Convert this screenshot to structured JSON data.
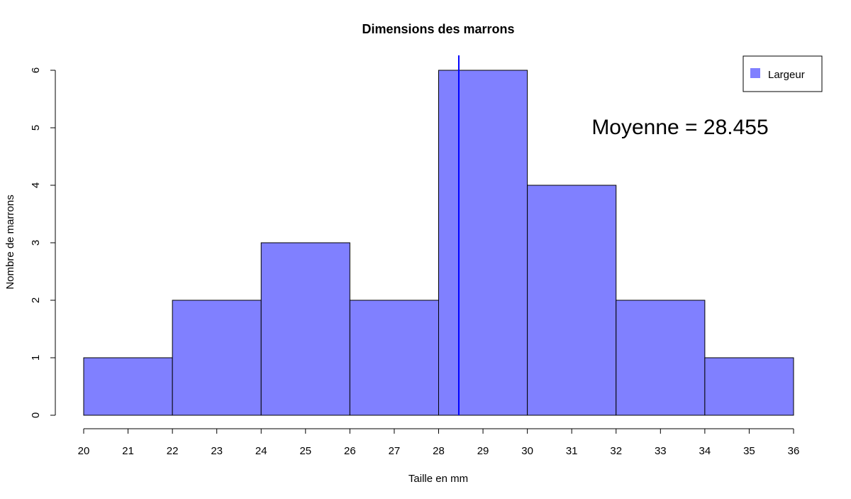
{
  "chart_data": {
    "type": "bar",
    "subtype": "histogram",
    "title": "Dimensions des marrons",
    "xlabel": "Taille en mm",
    "ylabel": "Nombre de marrons",
    "bins": [
      {
        "from": 20,
        "to": 22,
        "count": 1
      },
      {
        "from": 22,
        "to": 24,
        "count": 2
      },
      {
        "from": 24,
        "to": 26,
        "count": 3
      },
      {
        "from": 26,
        "to": 28,
        "count": 2
      },
      {
        "from": 28,
        "to": 30,
        "count": 6
      },
      {
        "from": 30,
        "to": 32,
        "count": 4
      },
      {
        "from": 32,
        "to": 34,
        "count": 2
      },
      {
        "from": 34,
        "to": 36,
        "count": 1
      }
    ],
    "xlim": [
      20,
      36
    ],
    "ylim": [
      0,
      6
    ],
    "x_ticks": [
      20,
      21,
      22,
      23,
      24,
      25,
      26,
      27,
      28,
      29,
      30,
      31,
      32,
      33,
      34,
      35,
      36
    ],
    "y_ticks": [
      0,
      1,
      2,
      3,
      4,
      5,
      6
    ],
    "mean_line": {
      "x": 28.455,
      "color": "#0000ff"
    },
    "annotation": {
      "text": "Moyenne = 28.455"
    },
    "legend": {
      "position": "top-right",
      "entries": [
        {
          "label": "Largeur",
          "color": "#8080ff"
        }
      ]
    },
    "bar_color": "#8080ff",
    "bar_border_color": "#000000",
    "grid": false
  }
}
